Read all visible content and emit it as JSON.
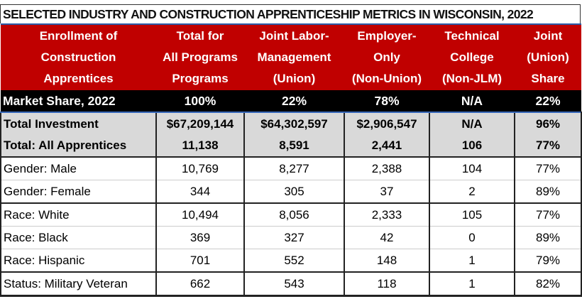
{
  "title": "SELECTED INDUSTRY AND CONSTRUCTION APPRENTICESHIP METRICS IN WISCONSIN, 2022",
  "colors": {
    "header_bg": "#c00000",
    "market_row_bg": "#000000",
    "total_rows_bg": "#d9d9d9"
  },
  "headers": [
    [
      "Enrollment of",
      "Construction",
      "Apprentices"
    ],
    [
      "Total for",
      "All Programs",
      "Programs"
    ],
    [
      "Joint Labor-",
      "Management",
      "(Union)"
    ],
    [
      "Employer-",
      "Only",
      "(Non-Union)"
    ],
    [
      "Technical",
      "College",
      "(Non-JLM)"
    ],
    [
      "Joint",
      "(Union)",
      "Share"
    ]
  ],
  "market_share": [
    "Market Share, 2022",
    "100%",
    "22%",
    "78%",
    "N/A",
    "22%"
  ],
  "totals": [
    [
      "Total Investment",
      "$67,209,144",
      "$64,302,597",
      "$2,906,547",
      "N/A",
      "96%"
    ],
    [
      "Total: All Apprentices",
      "11,138",
      "8,591",
      "2,441",
      "106",
      "77%"
    ]
  ],
  "rows": [
    [
      "Gender: Male",
      "10,769",
      "8,277",
      "2,388",
      "104",
      "77%"
    ],
    [
      "Gender: Female",
      "344",
      "305",
      "37",
      "2",
      "89%"
    ],
    [
      "Race: White",
      "10,494",
      "8,056",
      "2,333",
      "105",
      "77%"
    ],
    [
      "Race: Black",
      "369",
      "327",
      "42",
      "0",
      "89%"
    ],
    [
      "Race: Hispanic",
      "701",
      "552",
      "148",
      "1",
      "79%"
    ],
    [
      "Status: Military Veteran",
      "662",
      "543",
      "118",
      "1",
      "82%"
    ]
  ]
}
